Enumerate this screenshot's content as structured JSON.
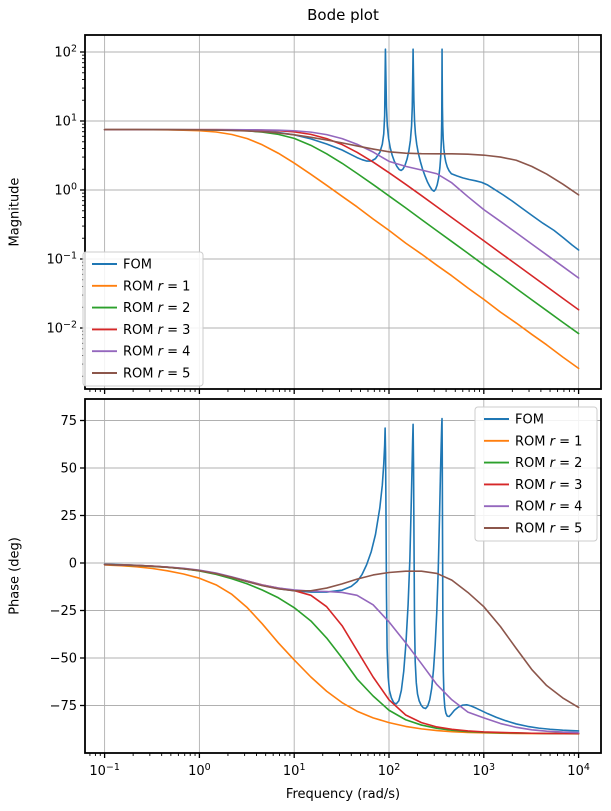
{
  "chart_data": {
    "type": "line",
    "title": "Bode plot",
    "xlabel": "Frequency (rad/s)",
    "x_scale": "log",
    "x_range_log": [
      -1,
      4
    ],
    "x_tick_exponents": [
      -1,
      0,
      1,
      2,
      3,
      4
    ],
    "grid": true,
    "subplots": [
      {
        "name": "magnitude",
        "ylabel": "Magnitude",
        "y_scale": "log",
        "y_tick_exponents": [
          2,
          1,
          0,
          -1,
          -2
        ],
        "legend_loc": "lower left"
      },
      {
        "name": "phase",
        "ylabel": "Phase (deg)",
        "y_scale": "linear",
        "y_ticks": [
          75,
          50,
          25,
          0,
          -25,
          -50,
          -75
        ],
        "legend_loc": "upper right"
      }
    ],
    "rom_frequencies": [
      0.1,
      0.15,
      0.22,
      0.32,
      0.46,
      0.68,
      1,
      1.5,
      2.2,
      3.2,
      4.6,
      6.8,
      10,
      15,
      22,
      32,
      46,
      68,
      100,
      150,
      220,
      320,
      460,
      680,
      1000,
      1500,
      2200,
      3200,
      4600,
      6800,
      10000
    ],
    "series": [
      {
        "label": "FOM",
        "color": "#1f77b4",
        "mag_points": [
          [
            0.1,
            7.5
          ],
          [
            0.22,
            7.49
          ],
          [
            0.46,
            7.47
          ],
          [
            1,
            7.44
          ],
          [
            2.2,
            7.36
          ],
          [
            3.2,
            7.27
          ],
          [
            4.6,
            7.1
          ],
          [
            6.8,
            6.8
          ],
          [
            10,
            6.3
          ],
          [
            15,
            5.5
          ],
          [
            22,
            4.65
          ],
          [
            32,
            3.8
          ],
          [
            40,
            3.25
          ],
          [
            46,
            2.95
          ],
          [
            52,
            2.75
          ],
          [
            58,
            2.63
          ],
          [
            65,
            2.63
          ],
          [
            72,
            2.85
          ],
          [
            80,
            3.5
          ],
          [
            85,
            4.6
          ],
          [
            88,
            6.5
          ],
          [
            90,
            12
          ],
          [
            91,
            45
          ],
          [
            91.7,
            110
          ],
          [
            92.5,
            55
          ],
          [
            94,
            16
          ],
          [
            96,
            8.5
          ],
          [
            99,
            5.6
          ],
          [
            103,
            4.1
          ],
          [
            108,
            3.2
          ],
          [
            114,
            2.6
          ],
          [
            121,
            2.2
          ],
          [
            128,
            1.98
          ],
          [
            134,
            1.92
          ],
          [
            140,
            2.0
          ],
          [
            147,
            2.25
          ],
          [
            155,
            2.8
          ],
          [
            162,
            3.7
          ],
          [
            168,
            5.2
          ],
          [
            173,
            8.5
          ],
          [
            176,
            16
          ],
          [
            178.5,
            60
          ],
          [
            179.5,
            110
          ],
          [
            181,
            50
          ],
          [
            183,
            20
          ],
          [
            186,
            10
          ],
          [
            190,
            6.5
          ],
          [
            196,
            4.6
          ],
          [
            204,
            3.4
          ],
          [
            214,
            2.6
          ],
          [
            226,
            2.0
          ],
          [
            240,
            1.6
          ],
          [
            255,
            1.3
          ],
          [
            270,
            1.12
          ],
          [
            285,
            1.0
          ],
          [
            298,
            0.96
          ],
          [
            310,
            1.02
          ],
          [
            322,
            1.18
          ],
          [
            334,
            1.5
          ],
          [
            344,
            2.1
          ],
          [
            352,
            3.2
          ],
          [
            357,
            5.5
          ],
          [
            360,
            10
          ],
          [
            361.8,
            40
          ],
          [
            362.8,
            110
          ],
          [
            364,
            45
          ],
          [
            366,
            16
          ],
          [
            369,
            8.5
          ],
          [
            373,
            5.5
          ],
          [
            379,
            4.0
          ],
          [
            387,
            3.1
          ],
          [
            397,
            2.55
          ],
          [
            412,
            2.15
          ],
          [
            430,
            1.9
          ],
          [
            455,
            1.72
          ],
          [
            520,
            1.6
          ],
          [
            600,
            1.5
          ],
          [
            700,
            1.42
          ],
          [
            820,
            1.36
          ],
          [
            950,
            1.29
          ],
          [
            1100,
            1.18
          ],
          [
            1300,
            1.02
          ],
          [
            1600,
            0.85
          ],
          [
            2000,
            0.69
          ],
          [
            2500,
            0.55
          ],
          [
            3200,
            0.43
          ],
          [
            4200,
            0.33
          ],
          [
            5500,
            0.26
          ],
          [
            7000,
            0.2
          ],
          [
            8500,
            0.16
          ],
          [
            10000,
            0.135
          ]
        ],
        "phase_points": [
          [
            0.1,
            -0.6
          ],
          [
            0.22,
            -1.2
          ],
          [
            0.46,
            -2.2
          ],
          [
            1,
            -4
          ],
          [
            2.2,
            -7.5
          ],
          [
            3.2,
            -9.8
          ],
          [
            4.6,
            -11.8
          ],
          [
            6.8,
            -13.5
          ],
          [
            10,
            -14.6
          ],
          [
            15,
            -15.3
          ],
          [
            22,
            -15.3
          ],
          [
            32,
            -14.3
          ],
          [
            40,
            -12.3
          ],
          [
            46,
            -9.8
          ],
          [
            52,
            -6
          ],
          [
            58,
            -1
          ],
          [
            65,
            6
          ],
          [
            72,
            15
          ],
          [
            80,
            29
          ],
          [
            85,
            41
          ],
          [
            88,
            52
          ],
          [
            90,
            62
          ],
          [
            91,
            71
          ],
          [
            92,
            58
          ],
          [
            93,
            25
          ],
          [
            94,
            -15
          ],
          [
            95.5,
            -45
          ],
          [
            98,
            -60
          ],
          [
            101,
            -67
          ],
          [
            106,
            -71
          ],
          [
            112,
            -73.5
          ],
          [
            119,
            -74.2
          ],
          [
            127,
            -72.5
          ],
          [
            135,
            -67
          ],
          [
            143,
            -57
          ],
          [
            151,
            -42
          ],
          [
            159,
            -22
          ],
          [
            166,
            2
          ],
          [
            171,
            28
          ],
          [
            175,
            50
          ],
          [
            177.5,
            64
          ],
          [
            179.5,
            73
          ],
          [
            181.5,
            52
          ],
          [
            183.5,
            12
          ],
          [
            186,
            -32
          ],
          [
            189,
            -52
          ],
          [
            194,
            -63
          ],
          [
            200,
            -69
          ],
          [
            208,
            -72.5
          ],
          [
            218,
            -74.8
          ],
          [
            230,
            -76.2
          ],
          [
            243,
            -76.6
          ],
          [
            256,
            -75.3
          ],
          [
            269,
            -72
          ],
          [
            282,
            -66
          ],
          [
            295,
            -56
          ],
          [
            307,
            -43
          ],
          [
            319,
            -26
          ],
          [
            331,
            -3
          ],
          [
            341,
            24
          ],
          [
            349,
            47
          ],
          [
            356,
            64
          ],
          [
            360,
            73
          ],
          [
            362.5,
            76
          ],
          [
            364.5,
            58
          ],
          [
            367,
            15
          ],
          [
            370,
            -30
          ],
          [
            374,
            -57
          ],
          [
            380,
            -70
          ],
          [
            388,
            -76
          ],
          [
            398,
            -79
          ],
          [
            412,
            -80.6
          ],
          [
            430,
            -80.8
          ],
          [
            455,
            -79.5
          ],
          [
            490,
            -77.5
          ],
          [
            540,
            -75.8
          ],
          [
            600,
            -74.8
          ],
          [
            660,
            -74.6
          ],
          [
            730,
            -75.2
          ],
          [
            830,
            -76.4
          ],
          [
            950,
            -77.8
          ],
          [
            1100,
            -79.3
          ],
          [
            1350,
            -81.2
          ],
          [
            1700,
            -83
          ],
          [
            2200,
            -84.7
          ],
          [
            2900,
            -86
          ],
          [
            3800,
            -86.9
          ],
          [
            5000,
            -87.5
          ],
          [
            6800,
            -88
          ],
          [
            10000,
            -88.4
          ]
        ]
      },
      {
        "label": "ROM r = 1",
        "color": "#ff7f0e",
        "mag": [
          7.5,
          7.49,
          7.49,
          7.47,
          7.44,
          7.36,
          7.22,
          6.93,
          6.37,
          5.56,
          4.52,
          3.41,
          2.46,
          1.69,
          1.17,
          0.81,
          0.57,
          0.38,
          0.26,
          0.17,
          0.118,
          0.081,
          0.057,
          0.038,
          0.026,
          0.017,
          0.0118,
          0.0081,
          0.0057,
          0.0038,
          0.0026
        ],
        "phase": [
          -1,
          -1.4,
          -2,
          -2.9,
          -4.1,
          -5.8,
          -8,
          -11.5,
          -16.5,
          -23.5,
          -32,
          -42,
          -51,
          -60,
          -67.5,
          -73.5,
          -78,
          -81.5,
          -84,
          -86,
          -87.3,
          -88.2,
          -88.8,
          -89.2,
          -89.4,
          -89.6,
          -89.7,
          -89.75,
          -89.8,
          -89.85,
          -89.9
        ]
      },
      {
        "label": "ROM r = 2",
        "color": "#2ca02c",
        "mag": [
          7.5,
          7.5,
          7.5,
          7.49,
          7.49,
          7.48,
          7.47,
          7.43,
          7.35,
          7.2,
          6.9,
          6.4,
          5.6,
          4.44,
          3.35,
          2.44,
          1.74,
          1.2,
          0.82,
          0.55,
          0.374,
          0.257,
          0.179,
          0.121,
          0.082,
          0.055,
          0.0374,
          0.0257,
          0.0179,
          0.0121,
          0.0083
        ],
        "phase": [
          -0.8,
          -1.1,
          -1.4,
          -1.8,
          -2.3,
          -3,
          -4.2,
          -6,
          -8.3,
          -11,
          -14.2,
          -18.3,
          -23.5,
          -30.5,
          -39.5,
          -50,
          -61,
          -70,
          -77.5,
          -82.5,
          -85.3,
          -87,
          -88,
          -88.7,
          -89.1,
          -89.4,
          -89.5,
          -89.6,
          -89.7,
          -89.75,
          -89.8
        ]
      },
      {
        "label": "ROM r = 3",
        "color": "#d62728",
        "mag": [
          7.5,
          7.5,
          7.5,
          7.5,
          7.5,
          7.49,
          7.49,
          7.48,
          7.47,
          7.44,
          7.37,
          7.22,
          6.96,
          6.4,
          5.55,
          4.56,
          3.52,
          2.54,
          1.78,
          1.21,
          0.83,
          0.572,
          0.398,
          0.27,
          0.184,
          0.122,
          0.0835,
          0.0574,
          0.0399,
          0.027,
          0.0184
        ],
        "phase": [
          -0.8,
          -1,
          -1.3,
          -1.7,
          -2.2,
          -2.9,
          -4,
          -5.5,
          -7.5,
          -9.5,
          -11.5,
          -13.2,
          -14.5,
          -17,
          -23,
          -33,
          -46,
          -60,
          -72,
          -80,
          -84,
          -86.3,
          -87.5,
          -88.4,
          -88.9,
          -89.2,
          -89.4,
          -89.6,
          -89.7,
          -89.75,
          -89.8
        ]
      },
      {
        "label": "ROM r = 4",
        "color": "#9467bd",
        "mag": [
          7.5,
          7.5,
          7.5,
          7.5,
          7.5,
          7.5,
          7.5,
          7.49,
          7.48,
          7.46,
          7.43,
          7.36,
          7.22,
          6.9,
          6.35,
          5.55,
          4.6,
          3.55,
          2.6,
          2.2,
          1.95,
          1.72,
          1.27,
          0.8,
          0.52,
          0.35,
          0.24,
          0.165,
          0.115,
          0.078,
          0.053
        ],
        "phase": [
          -0.8,
          -1,
          -1.3,
          -1.6,
          -2.1,
          -2.8,
          -3.8,
          -5.3,
          -7.3,
          -9.5,
          -11.6,
          -13.2,
          -14.2,
          -14.8,
          -15,
          -15.5,
          -17,
          -22,
          -31,
          -42,
          -53,
          -64,
          -72,
          -78.5,
          -81.5,
          -84.5,
          -86.5,
          -87.8,
          -88.5,
          -89,
          -89.3
        ]
      },
      {
        "label": "ROM r = 5",
        "color": "#8c564b",
        "mag": [
          7.5,
          7.5,
          7.5,
          7.49,
          7.48,
          7.46,
          7.44,
          7.38,
          7.3,
          7.18,
          7.0,
          6.7,
          6.3,
          5.8,
          5.3,
          4.82,
          4.35,
          3.92,
          3.58,
          3.42,
          3.36,
          3.35,
          3.35,
          3.3,
          3.2,
          3.0,
          2.7,
          2.2,
          1.7,
          1.22,
          0.85
        ],
        "phase": [
          -0.8,
          -1,
          -1.3,
          -1.7,
          -2.2,
          -3,
          -4,
          -5.6,
          -7.6,
          -9.8,
          -11.9,
          -13.6,
          -14.6,
          -14.6,
          -13.2,
          -11,
          -8.5,
          -6.3,
          -5,
          -4.3,
          -4.3,
          -5.5,
          -9,
          -15.5,
          -23,
          -33.5,
          -45,
          -56,
          -64.5,
          -71,
          -76
        ]
      }
    ],
    "style": {
      "grid_color": "#b0b0b0",
      "spine_color": "#000000",
      "legend_border_color": "#cccccc",
      "legend_bg": "rgba(255,255,255,0.85)"
    }
  }
}
